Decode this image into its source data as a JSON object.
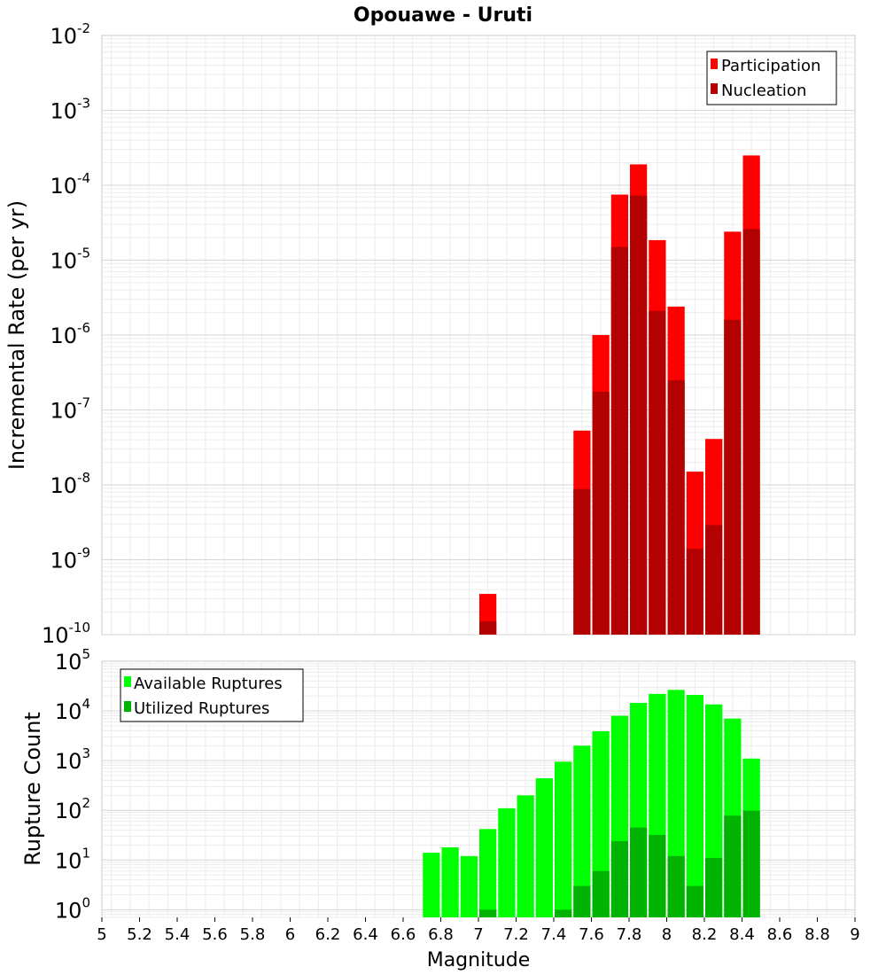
{
  "chart_data": [
    {
      "type": "bar",
      "title": "Opouawe - Uruti",
      "ylabel": "Incremental Rate (per yr)",
      "xlabel": "",
      "y_scale": "log",
      "ylim": [
        1e-10,
        0.01
      ],
      "xlim": [
        5,
        9
      ],
      "grid": true,
      "legend_position": "top-right",
      "yticks": [
        {
          "base": "10",
          "exp": "-10",
          "value": 1e-10
        },
        {
          "base": "10",
          "exp": "-9",
          "value": 1e-09
        },
        {
          "base": "10",
          "exp": "-8",
          "value": 1e-08
        },
        {
          "base": "10",
          "exp": "-7",
          "value": 1e-07
        },
        {
          "base": "10",
          "exp": "-6",
          "value": 1e-06
        },
        {
          "base": "10",
          "exp": "-5",
          "value": 1e-05
        },
        {
          "base": "10",
          "exp": "-4",
          "value": 0.0001
        },
        {
          "base": "10",
          "exp": "-3",
          "value": 0.001
        },
        {
          "base": "10",
          "exp": "-2",
          "value": 0.01
        }
      ],
      "bin_width": 0.1,
      "series": [
        {
          "name": "Participation",
          "color": "#ff0000",
          "x": [
            7.05,
            7.55,
            7.65,
            7.75,
            7.85,
            7.95,
            8.05,
            8.15,
            8.25,
            8.35,
            8.45
          ],
          "values": [
            3.5e-10,
            5.3e-08,
            1e-06,
            7.5e-05,
            0.00019,
            1.85e-05,
            2.4e-06,
            1.5e-08,
            4.1e-08,
            2.4e-05,
            0.00025
          ]
        },
        {
          "name": "Nucleation",
          "color": "#b30000",
          "x": [
            7.05,
            7.55,
            7.65,
            7.75,
            7.85,
            7.95,
            8.05,
            8.15,
            8.25,
            8.35,
            8.45
          ],
          "values": [
            1.5e-10,
            8.8e-09,
            1.75e-07,
            1.5e-05,
            7.3e-05,
            2.1e-06,
            2.5e-07,
            1.4e-09,
            2.9e-09,
            1.6e-06,
            2.6e-05
          ]
        }
      ]
    },
    {
      "type": "bar",
      "title": "",
      "ylabel": "Rupture Count",
      "xlabel": "Magnitude",
      "y_scale": "log",
      "ylim": [
        0.7,
        100000.0
      ],
      "xlim": [
        5,
        9
      ],
      "grid": true,
      "legend_position": "top-left",
      "yticks": [
        {
          "base": "10",
          "exp": "0",
          "value": 1
        },
        {
          "base": "10",
          "exp": "1",
          "value": 10
        },
        {
          "base": "10",
          "exp": "2",
          "value": 100
        },
        {
          "base": "10",
          "exp": "3",
          "value": 1000
        },
        {
          "base": "10",
          "exp": "4",
          "value": 10000
        },
        {
          "base": "10",
          "exp": "5",
          "value": 100000
        }
      ],
      "xticks": [
        "5",
        "5.2",
        "5.4",
        "5.6",
        "5.8",
        "6",
        "6.2",
        "6.4",
        "6.6",
        "6.8",
        "7",
        "7.2",
        "7.4",
        "7.6",
        "7.8",
        "8",
        "8.2",
        "8.4",
        "8.6",
        "8.8",
        "9"
      ],
      "bin_width": 0.1,
      "series": [
        {
          "name": "Available Ruptures",
          "color": "#00ff00",
          "x": [
            6.75,
            6.85,
            6.95,
            7.05,
            7.15,
            7.25,
            7.35,
            7.45,
            7.55,
            7.65,
            7.75,
            7.85,
            7.95,
            8.05,
            8.15,
            8.25,
            8.35,
            8.45
          ],
          "values": [
            14,
            18,
            12,
            42,
            110,
            200,
            440,
            950,
            2000,
            3900,
            8000,
            14500,
            22000,
            26500,
            21000,
            13500,
            7000,
            1100
          ]
        },
        {
          "name": "Utilized Ruptures",
          "color": "#00b300",
          "x": [
            7.05,
            7.45,
            7.55,
            7.65,
            7.75,
            7.85,
            7.95,
            8.05,
            8.15,
            8.25,
            8.35,
            8.45
          ],
          "values": [
            1,
            1,
            3,
            6,
            24,
            45,
            32,
            12,
            3,
            11,
            78,
            98
          ]
        }
      ]
    }
  ]
}
